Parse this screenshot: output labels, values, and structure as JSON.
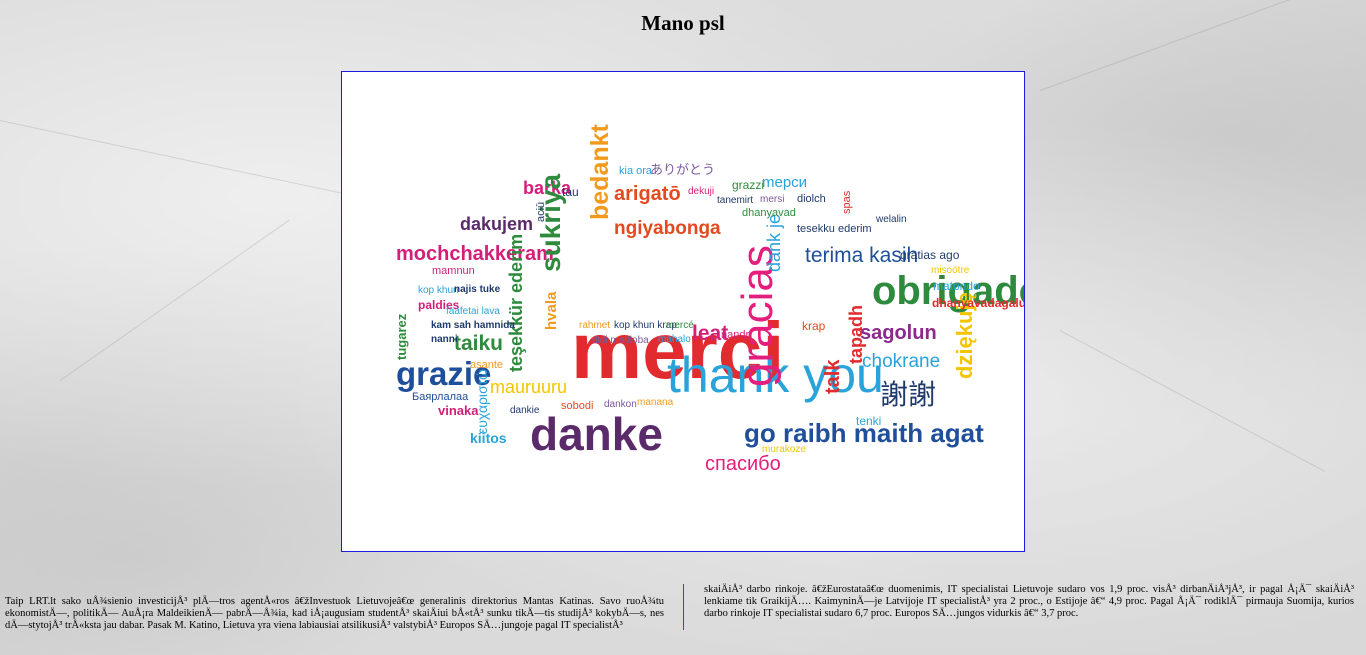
{
  "page": {
    "title": "Mano psl",
    "image_alt": "Thank you word cloud in many languages"
  },
  "word_cloud": [
    {
      "text": "merci",
      "color": "#e22b2e"
    },
    {
      "text": "thank you",
      "color": "#2aa3da"
    },
    {
      "text": "gracias",
      "color": "#e41e7c"
    },
    {
      "text": "danke",
      "color": "#5b2a6b"
    },
    {
      "text": "obrigado",
      "color": "#2e8b3e"
    },
    {
      "text": "go raibh maith agat",
      "color": "#1f4f9b"
    },
    {
      "text": "спасибо",
      "color": "#e41e7c"
    },
    {
      "text": "謝謝",
      "color": "#1f3a6b"
    },
    {
      "text": "mochchakkeram",
      "color": "#d41f7a"
    },
    {
      "text": "dakujem",
      "color": "#5b2a6b"
    },
    {
      "text": "ngiyabonga",
      "color": "#e44a1e"
    },
    {
      "text": "terima kasih",
      "color": "#1f4f9b"
    },
    {
      "text": "sagolun",
      "color": "#8b2a8b"
    },
    {
      "text": "chokrane",
      "color": "#2aa3da"
    },
    {
      "text": "grazie",
      "color": "#1f4f9b"
    },
    {
      "text": "mauruuru",
      "color": "#f2c500"
    },
    {
      "text": "arigatō",
      "color": "#e44a1e"
    },
    {
      "text": "barka",
      "color": "#d41f7a"
    },
    {
      "text": "bedankt",
      "color": "#f29a1e"
    },
    {
      "text": "dziękuję",
      "color": "#f2c500"
    },
    {
      "text": "mерси",
      "color": "#2aa3da"
    },
    {
      "text": "ありがとう",
      "color": "#7b5a9b"
    },
    {
      "text": "sukriya",
      "color": "#2e8b3e"
    },
    {
      "text": "teşekkür ederim",
      "color": "#2e8b3e"
    },
    {
      "text": "leat",
      "color": "#d41f7a"
    },
    {
      "text": "taiku",
      "color": "#2e8b3e"
    },
    {
      "text": "hvala",
      "color": "#f29a1e"
    },
    {
      "text": "talk",
      "color": "#e22b2e"
    },
    {
      "text": "tapadh",
      "color": "#e22b2e"
    },
    {
      "text": "dank je",
      "color": "#2aa3da"
    },
    {
      "text": "spas",
      "color": "#e22b2e"
    },
    {
      "text": "kiitos",
      "color": "#2aa3da"
    },
    {
      "text": "vinaka",
      "color": "#d41f7a"
    },
    {
      "text": "ευχαριστώ",
      "color": "#2aa3da"
    },
    {
      "text": "Баярлалаа",
      "color": "#1f4f9b"
    },
    {
      "text": "tenki",
      "color": "#2aa3da"
    },
    {
      "text": "murakoze",
      "color": "#f2c500"
    },
    {
      "text": "matondo",
      "color": "#2aa3da"
    },
    {
      "text": "dhanyavadagalu",
      "color": "#e22b2e"
    },
    {
      "text": "gratias ago",
      "color": "#1f3a6b"
    },
    {
      "text": "paldies",
      "color": "#d41f7a"
    },
    {
      "text": "kop khun",
      "color": "#2aa3da"
    },
    {
      "text": "najis tuke",
      "color": "#1f3a6b"
    },
    {
      "text": "faafetai lava",
      "color": "#2aa3da"
    },
    {
      "text": "kam sah hamnida",
      "color": "#1f3a6b"
    },
    {
      "text": "nanni",
      "color": "#1f3a6b"
    },
    {
      "text": "asante",
      "color": "#f29a1e"
    },
    {
      "text": "dankie",
      "color": "#1f3a6b"
    },
    {
      "text": "sobodi",
      "color": "#e44a1e"
    },
    {
      "text": "dankon",
      "color": "#7b5a9b"
    },
    {
      "text": "manana",
      "color": "#f29a1e"
    },
    {
      "text": "rahmet",
      "color": "#f29a1e"
    },
    {
      "text": "kop khun krap",
      "color": "#1f3a6b"
    },
    {
      "text": "mercé",
      "color": "#2e8b3e"
    },
    {
      "text": "didi madloba",
      "color": "#7b5a9b"
    },
    {
      "text": "mahalo",
      "color": "#2aa3da"
    },
    {
      "text": "nandri",
      "color": "#d41f7a"
    },
    {
      "text": "krap",
      "color": "#e44a1e"
    },
    {
      "text": "grazzi",
      "color": "#2e8b3e"
    },
    {
      "text": "tanemirt",
      "color": "#1f3a6b"
    },
    {
      "text": "mersi",
      "color": "#7b5a9b"
    },
    {
      "text": "diolch",
      "color": "#1f3a6b"
    },
    {
      "text": "dhanyavad",
      "color": "#2e8b3e"
    },
    {
      "text": "tesekku ederim",
      "color": "#1f3a6b"
    },
    {
      "text": "welalin",
      "color": "#1f3a6b"
    },
    {
      "text": "misoötre",
      "color": "#f2c500"
    },
    {
      "text": "tau",
      "color": "#1f3a6b"
    },
    {
      "text": "aciū",
      "color": "#1f3a6b"
    },
    {
      "text": "dekuji",
      "color": "#d41f7a"
    },
    {
      "text": "kia ora",
      "color": "#2aa3da"
    },
    {
      "text": "mamnun",
      "color": "#d41f7a"
    },
    {
      "text": "tugarez",
      "color": "#2e8b3e"
    }
  ],
  "article": {
    "left_column": "Taip LRT.lt sako uÅ¾sienio investicijÅ³ plÄ—tros agentÅ«ros â€žInvestuok Lietuvojeâ€œ generalinis direktorius Mantas Katinas. Savo ruoÅ¾tu ekonomistÄ—, politikÄ— AuÅ¡ra MaldeikienÄ— pabrÄ—Å¾ia, kad iÅ¡augusiam studentÅ³ skaiÄiui bÅ«tÅ³ sunku tikÄ—tis studijÅ³ kokybÄ—s, nes dÄ—stytojÅ³ trÅ«ksta jau dabar. Pasak M. Katino, Lietuva yra viena labiausiai atsilikusiÅ³ valstybiÅ³ Europos SÄ…jungoje pagal IT specialistÅ³",
    "right_column": "skaiÄiÅ³ darbo rinkoje. â€žEurostataâ€œ duomenimis, IT specialistai Lietuvoje sudaro vos 1,9 proc. visÅ³ dirbanÄiÅ³jÅ³, ir pagal Å¡Ä¯ skaiÄiÅ³ lenkiame tik GraikijÄ…. KaimyninÄ—je Latvijoje IT specialistÅ³ yra 2 proc., o Estijoje â€“ 4,9 proc. Pagal Å¡Ä¯ rodiklÄ¯ pirmauja Suomija, kurios darbo rinkoje IT specialistai sudaro 6,7 proc. Europos SÄ…jungos vidurkis â€“ 3,7 proc."
  }
}
